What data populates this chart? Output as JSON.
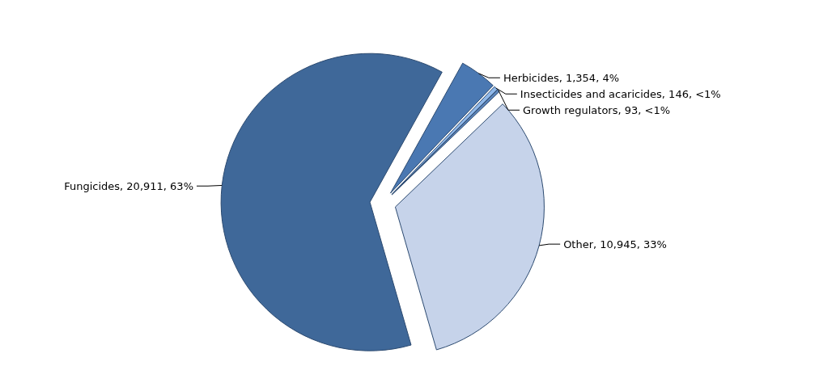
{
  "chart_data": {
    "type": "pie",
    "categories": [
      "Herbicides",
      "Insecticides and acaricides",
      "Growth regulators",
      "Other",
      "Fungicides"
    ],
    "values": [
      1354,
      146,
      93,
      10945,
      20911
    ],
    "value_labels": [
      "1,354, 4%",
      "146, <1%",
      "93, <1%",
      "10,945, 33%",
      "20,911, 63%"
    ],
    "colors": [
      "#4a78b2",
      "#8fb8ea",
      "#5d86bd",
      "#c6d3ea",
      "#3f6899"
    ]
  }
}
